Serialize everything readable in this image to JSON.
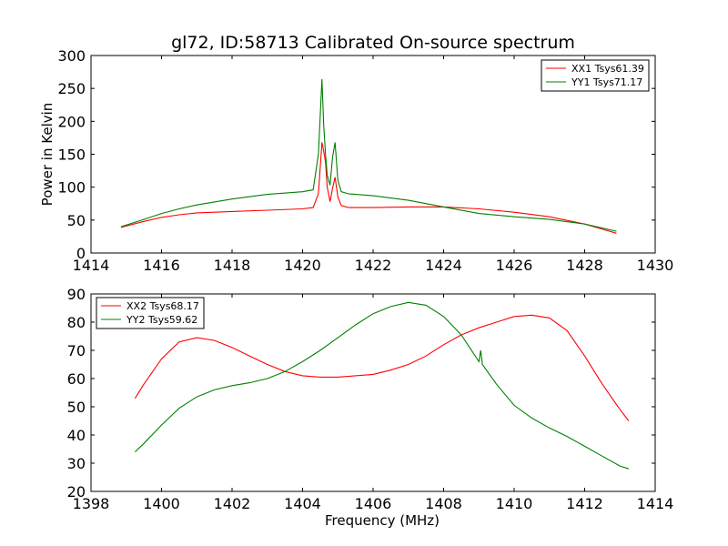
{
  "figure": {
    "title": "gl72, ID:58713 Calibrated On-source spectrum",
    "colors": {
      "red": "#ff0000",
      "green": "#008000",
      "axis": "#000000"
    }
  },
  "chart_data": [
    {
      "type": "line",
      "title": "gl72, ID:58713 Calibrated On-source spectrum",
      "xlabel": "",
      "ylabel": "Power in Kelvin",
      "xlim": [
        1414,
        1430
      ],
      "ylim": [
        0,
        300
      ],
      "xticks": [
        1414,
        1416,
        1418,
        1420,
        1422,
        1424,
        1426,
        1428,
        1430
      ],
      "yticks": [
        0,
        50,
        100,
        150,
        200,
        250,
        300
      ],
      "grid": false,
      "legend_position": "top-right",
      "series": [
        {
          "name": "XX1 Tsys61.39",
          "color": "#ff0000",
          "x": [
            1414.85,
            1415.5,
            1416.0,
            1416.5,
            1417.0,
            1418.0,
            1419.0,
            1420.0,
            1420.3,
            1420.45,
            1420.55,
            1420.6,
            1420.65,
            1420.7,
            1420.78,
            1420.85,
            1420.92,
            1421.0,
            1421.1,
            1421.3,
            1422.0,
            1423.0,
            1424.0,
            1425.0,
            1426.0,
            1427.0,
            1428.0,
            1428.9
          ],
          "y": [
            39,
            48,
            54,
            58,
            61,
            63,
            65,
            67,
            69,
            90,
            168,
            155,
            138,
            100,
            78,
            98,
            115,
            85,
            72,
            69,
            69,
            70,
            70,
            67,
            62,
            55,
            44,
            30
          ]
        },
        {
          "name": "YY1 Tsys71.17",
          "color": "#008000",
          "x": [
            1414.85,
            1415.5,
            1416.0,
            1416.5,
            1417.0,
            1418.0,
            1419.0,
            1420.0,
            1420.3,
            1420.45,
            1420.55,
            1420.6,
            1420.65,
            1420.7,
            1420.78,
            1420.85,
            1420.92,
            1421.0,
            1421.1,
            1421.3,
            1422.0,
            1423.0,
            1424.0,
            1425.0,
            1426.0,
            1427.0,
            1428.0,
            1428.9
          ],
          "y": [
            40,
            51,
            60,
            67,
            73,
            82,
            89,
            93,
            96,
            150,
            264,
            195,
            150,
            118,
            103,
            145,
            168,
            110,
            93,
            90,
            87,
            80,
            70,
            60,
            55,
            51,
            44,
            33
          ]
        }
      ]
    },
    {
      "type": "line",
      "title": "",
      "xlabel": "Frequency (MHz)",
      "ylabel": "",
      "xlim": [
        1398,
        1414
      ],
      "ylim": [
        20,
        90
      ],
      "xticks": [
        1398,
        1400,
        1402,
        1404,
        1406,
        1408,
        1410,
        1412,
        1414
      ],
      "yticks": [
        20,
        30,
        40,
        50,
        60,
        70,
        80,
        90
      ],
      "grid": false,
      "legend_position": "top-left",
      "series": [
        {
          "name": "XX2 Tsys68.17",
          "color": "#ff0000",
          "x": [
            1399.25,
            1399.5,
            1400.0,
            1400.5,
            1401.0,
            1401.5,
            1402.0,
            1402.5,
            1403.0,
            1403.5,
            1404.0,
            1404.5,
            1405.0,
            1405.5,
            1406.0,
            1406.5,
            1407.0,
            1407.5,
            1408.0,
            1408.5,
            1409.0,
            1409.5,
            1410.0,
            1410.5,
            1411.0,
            1411.5,
            1412.0,
            1412.5,
            1413.0,
            1413.25
          ],
          "y": [
            53,
            58,
            67,
            73,
            74.5,
            73.5,
            71,
            68,
            65,
            62.5,
            61,
            60.5,
            60.5,
            61,
            61.5,
            63,
            65,
            68,
            72,
            75.5,
            78,
            80,
            82,
            82.5,
            81.5,
            77,
            68,
            58,
            49,
            45
          ]
        },
        {
          "name": "YY2 Tsys59.62",
          "color": "#008000",
          "x": [
            1399.25,
            1399.5,
            1400.0,
            1400.5,
            1401.0,
            1401.5,
            1402.0,
            1402.5,
            1403.0,
            1403.5,
            1404.0,
            1404.5,
            1405.0,
            1405.5,
            1406.0,
            1406.5,
            1407.0,
            1407.5,
            1408.0,
            1408.5,
            1409.0,
            1409.05,
            1409.1,
            1409.5,
            1410.0,
            1410.5,
            1411.0,
            1411.5,
            1412.0,
            1412.5,
            1413.0,
            1413.25
          ],
          "y": [
            34,
            37,
            43.5,
            49.5,
            53.5,
            56,
            57.5,
            58.5,
            60,
            62.5,
            66,
            70,
            74.5,
            79,
            83,
            85.5,
            87,
            86,
            82,
            75.5,
            66,
            70,
            65,
            58,
            50.5,
            46,
            42.5,
            39.5,
            36,
            32.5,
            29,
            28
          ]
        }
      ]
    }
  ]
}
